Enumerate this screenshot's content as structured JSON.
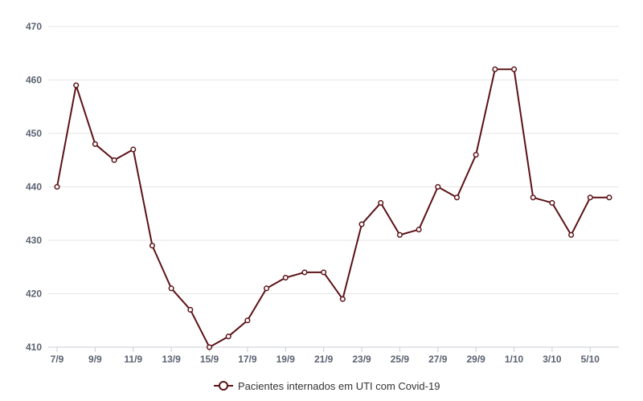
{
  "chart_data": {
    "type": "line",
    "x": [
      "7/9",
      "8/9",
      "9/9",
      "10/9",
      "11/9",
      "12/9",
      "13/9",
      "14/9",
      "15/9",
      "16/9",
      "17/9",
      "18/9",
      "19/9",
      "20/9",
      "21/9",
      "22/9",
      "23/9",
      "24/9",
      "25/9",
      "26/9",
      "27/9",
      "28/9",
      "29/9",
      "30/9",
      "1/10",
      "2/10",
      "3/10",
      "4/10",
      "5/10",
      "6/10"
    ],
    "xticks": [
      "7/9",
      "9/9",
      "11/9",
      "13/9",
      "15/9",
      "17/9",
      "19/9",
      "21/9",
      "23/9",
      "25/9",
      "27/9",
      "29/9",
      "1/10",
      "3/10",
      "5/10"
    ],
    "series": [
      {
        "name": "Pacientes internados em UTI com Covid-19",
        "color": "#5c1216",
        "values": [
          440,
          459,
          448,
          445,
          447,
          429,
          421,
          417,
          410,
          412,
          415,
          421,
          423,
          424,
          424,
          419,
          433,
          437,
          431,
          432,
          440,
          438,
          446,
          462,
          462,
          438,
          437,
          431,
          438,
          438
        ]
      }
    ],
    "ylim": [
      410,
      470
    ],
    "yticks": [
      410,
      420,
      430,
      440,
      450,
      460,
      470
    ],
    "title": "",
    "xlabel": "",
    "ylabel": "",
    "grid": true,
    "legend": "bottom-center"
  }
}
